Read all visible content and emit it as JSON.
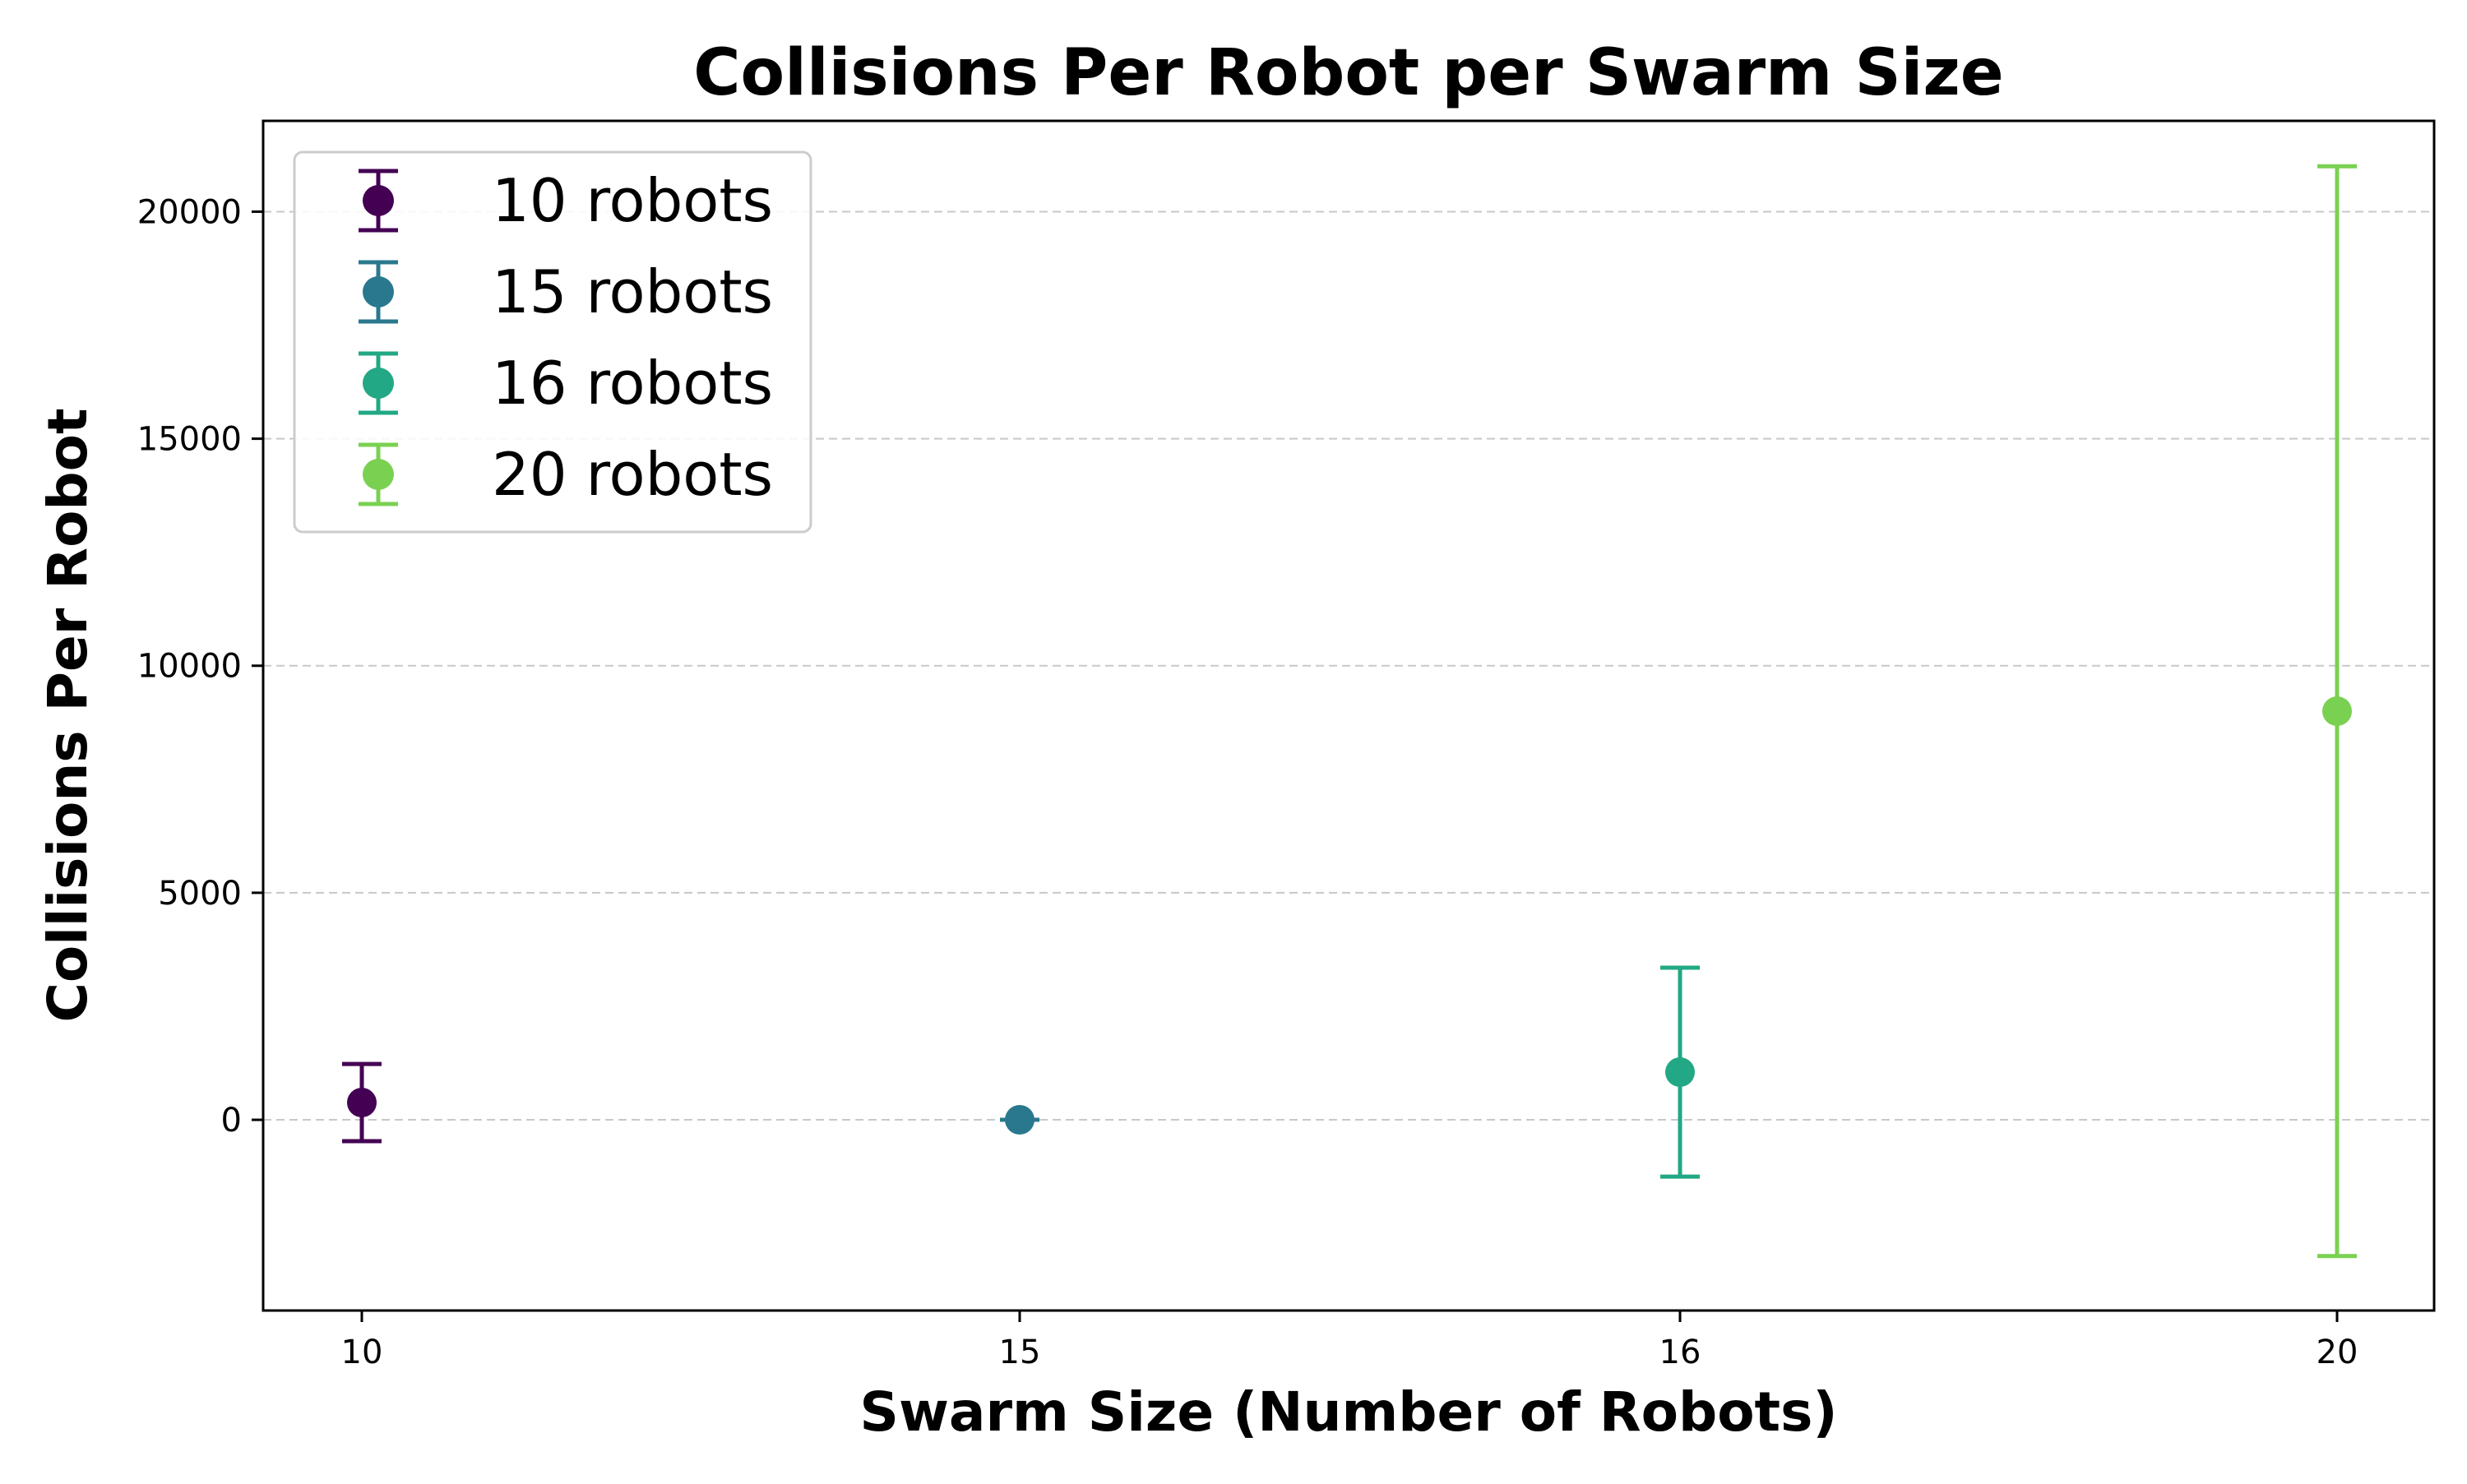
{
  "chart_data": {
    "type": "scatter",
    "title": "Collisions Per Robot per Swarm Size",
    "xlabel": "Swarm Size (Number of Robots)",
    "ylabel": "Collisions Per Robot",
    "categories": [
      "10",
      "15",
      "16",
      "20"
    ],
    "ylim": [
      -4200,
      22000
    ],
    "yticks": [
      0,
      5000,
      10000,
      15000,
      20000
    ],
    "grid": "y-dashed",
    "legend_position": "top-left",
    "series": [
      {
        "name": "10 robots",
        "category": "10",
        "y": 380,
        "err": 850,
        "color": "#440154"
      },
      {
        "name": "15 robots",
        "category": "15",
        "y": 0,
        "err": 0,
        "color": "#2a788e"
      },
      {
        "name": "16 robots",
        "category": "16",
        "y": 1050,
        "err": 2300,
        "color": "#22a884"
      },
      {
        "name": "20 robots",
        "category": "20",
        "y": 9000,
        "err": 12000,
        "color": "#7ad151"
      }
    ]
  }
}
